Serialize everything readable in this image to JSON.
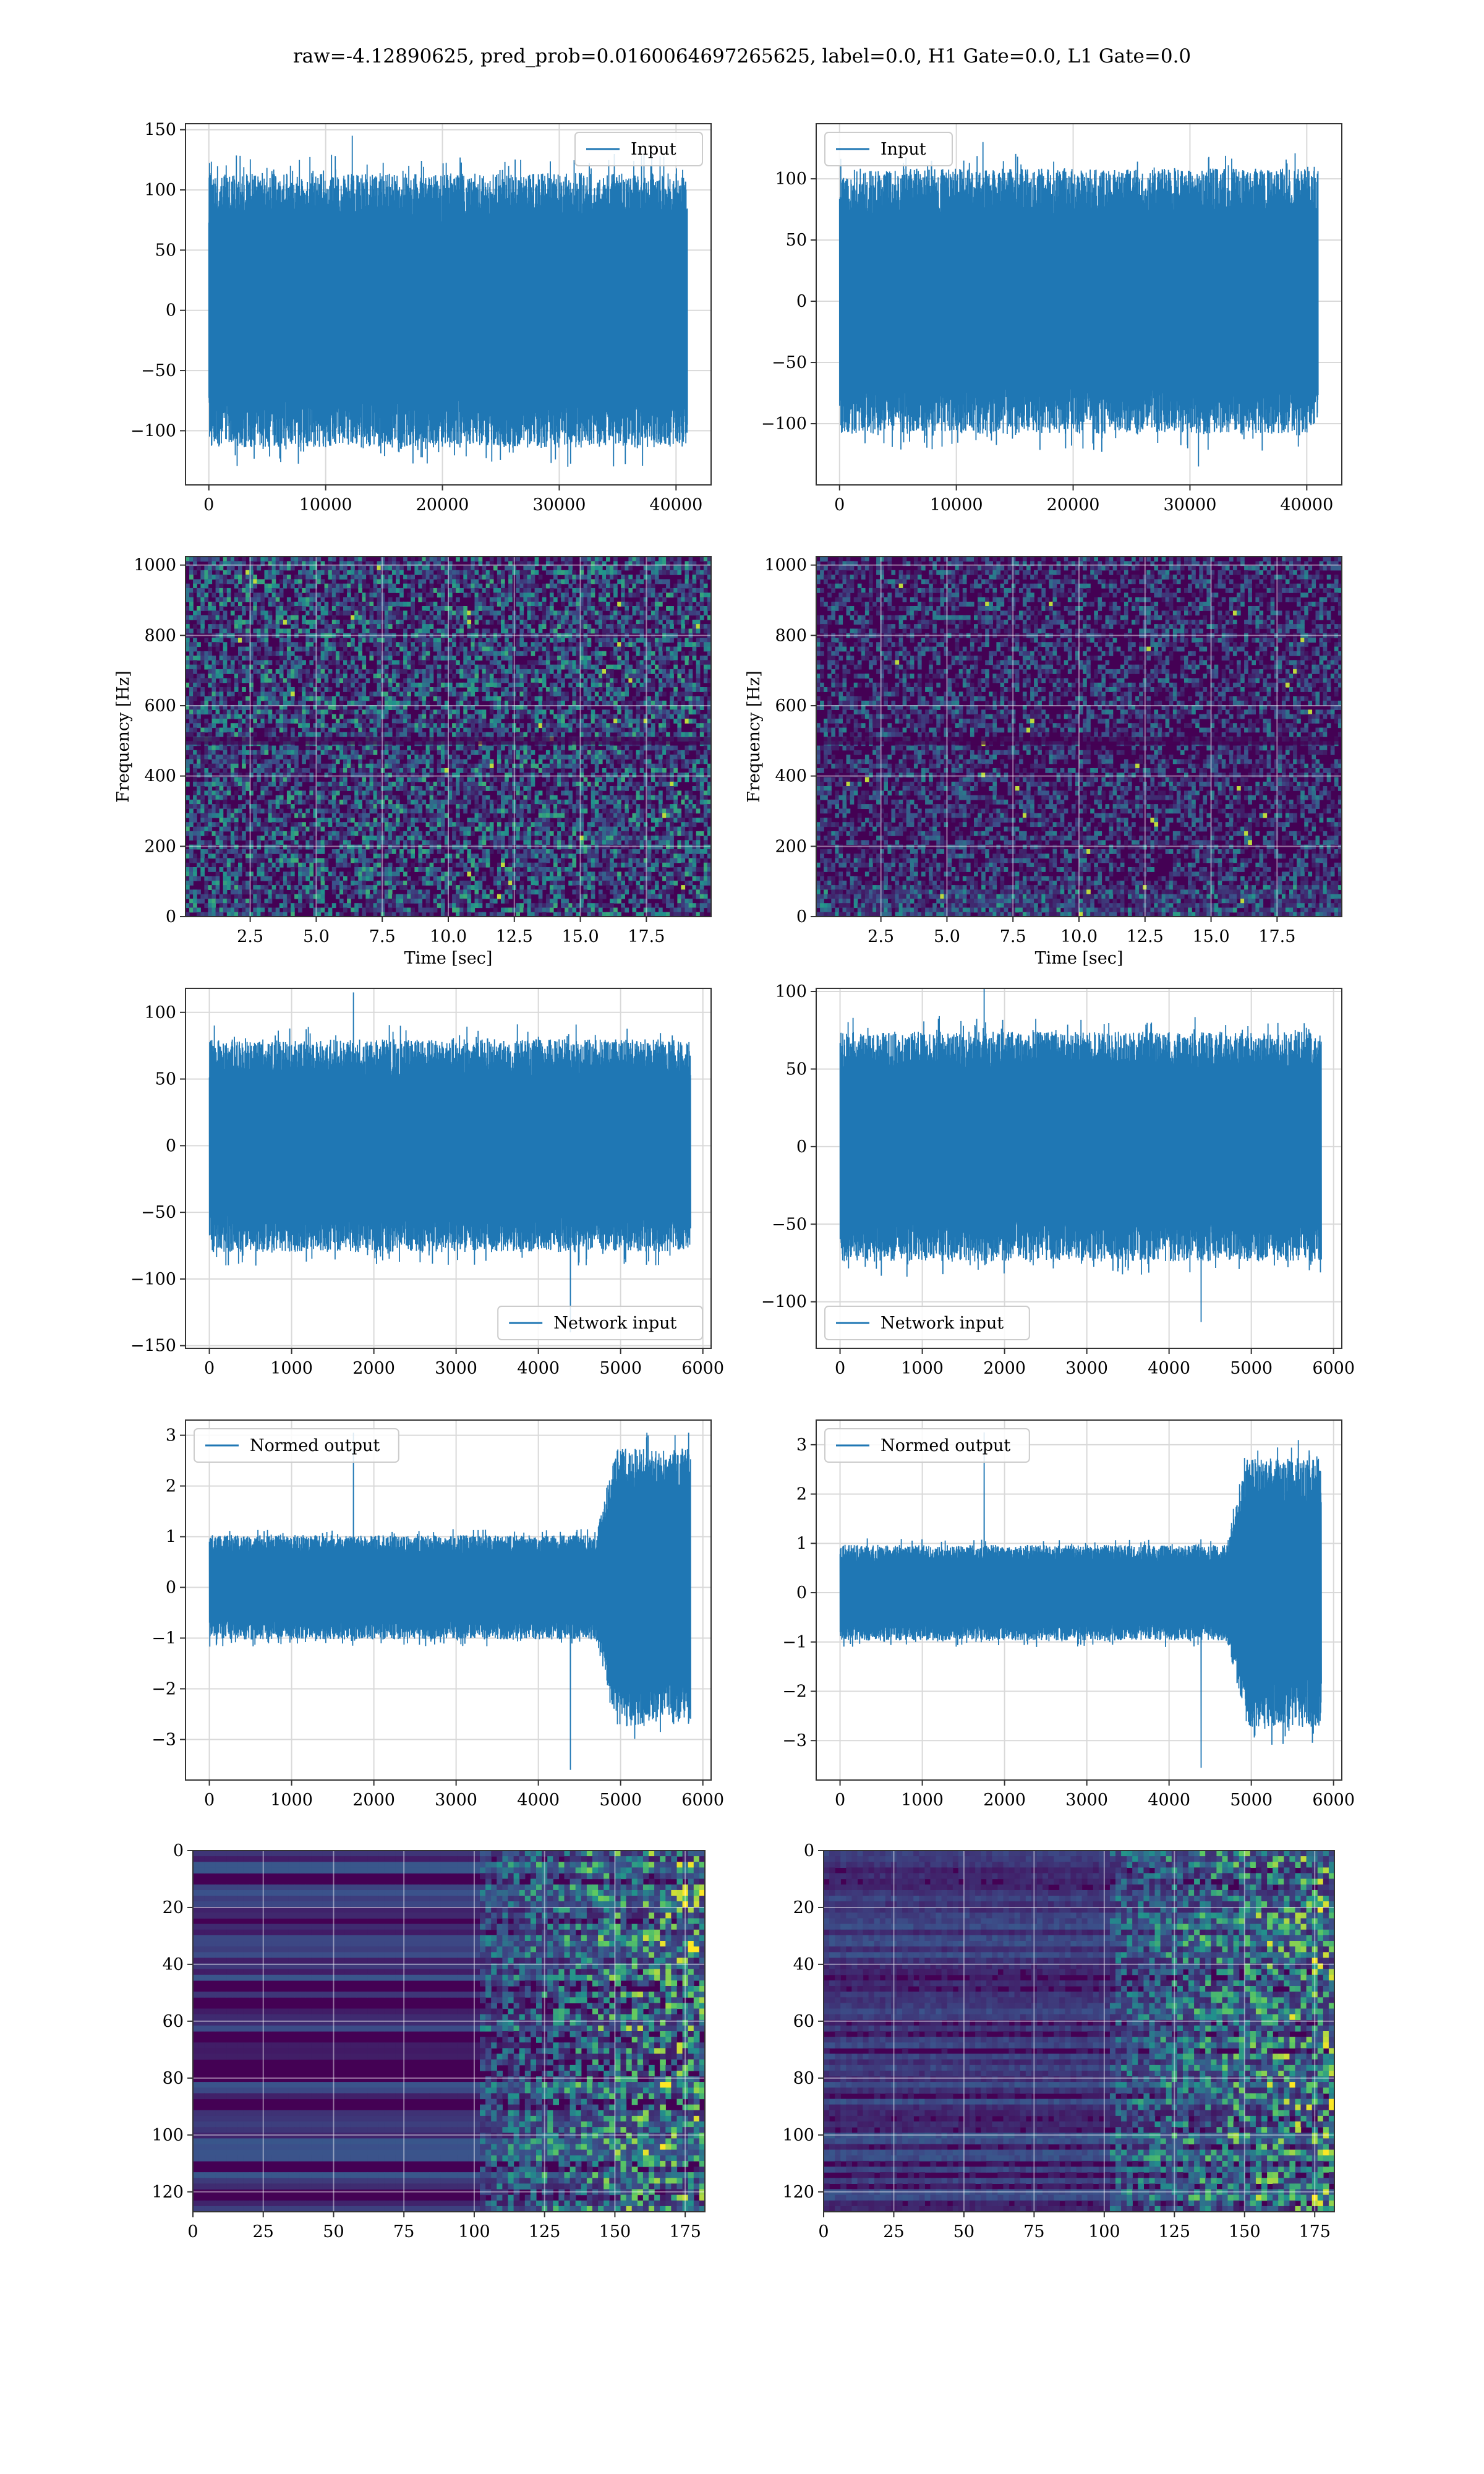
{
  "figure": {
    "title": "raw=-4.12890625, pred_prob=0.0160064697265625, label=0.0, H1 Gate=0.0, L1 Gate=0.0"
  },
  "colors": {
    "line": "#1f77b4",
    "grid": "#d9d9d9",
    "axes": "#333333",
    "viridis_low": "#440154",
    "viridis_mid": "#21918c",
    "viridis_high": "#fde725"
  },
  "chart_data": [
    {
      "id": "h1-input",
      "type": "line",
      "title": "",
      "xlabel": "",
      "ylabel": "",
      "xlim": [
        -2000,
        43000
      ],
      "ylim": [
        -145,
        155
      ],
      "xticks": [
        0,
        10000,
        20000,
        30000,
        40000
      ],
      "xtick_labels": [
        "0",
        "10000",
        "20000",
        "30000",
        "40000"
      ],
      "yticks": [
        -100,
        -50,
        0,
        50,
        100,
        150
      ],
      "ytick_labels": [
        "−100",
        "−50",
        "0",
        "50",
        "100",
        "150"
      ],
      "grid": true,
      "legend": {
        "loc": "upper right",
        "entries": [
          "Input"
        ]
      },
      "series": [
        {
          "name": "Input",
          "x_range": [
            0,
            40960
          ],
          "envelope": [
            -100,
            100
          ],
          "peak_max": 145,
          "peak_min": -130
        }
      ]
    },
    {
      "id": "l1-input",
      "type": "line",
      "title": "",
      "xlabel": "",
      "ylabel": "",
      "xlim": [
        -2000,
        43000
      ],
      "ylim": [
        -150,
        145
      ],
      "xticks": [
        0,
        10000,
        20000,
        30000,
        40000
      ],
      "xtick_labels": [
        "0",
        "10000",
        "20000",
        "30000",
        "40000"
      ],
      "yticks": [
        -100,
        -50,
        0,
        50,
        100
      ],
      "ytick_labels": [
        "−100",
        "−50",
        "0",
        "50",
        "100"
      ],
      "grid": true,
      "legend": {
        "loc": "upper left",
        "entries": [
          "Input"
        ]
      },
      "series": [
        {
          "name": "Input",
          "x_range": [
            0,
            40960
          ],
          "envelope": [
            -95,
            95
          ],
          "peak_max": 130,
          "peak_min": -135
        }
      ]
    },
    {
      "id": "h1-spectrogram",
      "type": "heatmap",
      "title": "",
      "xlabel": "Time [sec]",
      "ylabel": "Frequency [Hz]",
      "xlim": [
        0.05,
        19.95
      ],
      "ylim": [
        0,
        1024
      ],
      "xticks": [
        2.5,
        5.0,
        7.5,
        10.0,
        12.5,
        15.0,
        17.5
      ],
      "xtick_labels": [
        "2.5",
        "5.0",
        "7.5",
        "10.0",
        "12.5",
        "15.0",
        "17.5"
      ],
      "yticks": [
        0,
        200,
        400,
        600,
        800,
        1000
      ],
      "ytick_labels": [
        "0",
        "200",
        "400",
        "600",
        "800",
        "1000"
      ],
      "grid": true,
      "colormap": "viridis"
    },
    {
      "id": "l1-spectrogram",
      "type": "heatmap",
      "title": "",
      "xlabel": "Time [sec]",
      "ylabel": "Frequency [Hz]",
      "xlim": [
        0.05,
        19.95
      ],
      "ylim": [
        0,
        1024
      ],
      "xticks": [
        2.5,
        5.0,
        7.5,
        10.0,
        12.5,
        15.0,
        17.5
      ],
      "xtick_labels": [
        "2.5",
        "5.0",
        "7.5",
        "10.0",
        "12.5",
        "15.0",
        "17.5"
      ],
      "yticks": [
        0,
        200,
        400,
        600,
        800,
        1000
      ],
      "ytick_labels": [
        "0",
        "200",
        "400",
        "600",
        "800",
        "1000"
      ],
      "grid": true,
      "colormap": "viridis"
    },
    {
      "id": "h1-network-input",
      "type": "line",
      "title": "",
      "xlabel": "",
      "ylabel": "",
      "xlim": [
        -290,
        6100
      ],
      "ylim": [
        -152,
        118
      ],
      "xticks": [
        0,
        1000,
        2000,
        3000,
        4000,
        5000,
        6000
      ],
      "xtick_labels": [
        "0",
        "1000",
        "2000",
        "3000",
        "4000",
        "5000",
        "6000"
      ],
      "yticks": [
        -150,
        -100,
        -50,
        0,
        50,
        100
      ],
      "ytick_labels": [
        "−150",
        "−100",
        "−50",
        "0",
        "50",
        "100"
      ],
      "grid": true,
      "legend": {
        "loc": "lower right",
        "entries": [
          "Network input"
        ]
      },
      "series": [
        {
          "name": "Network input",
          "x_range": [
            0,
            5850
          ],
          "envelope": [
            -70,
            70
          ],
          "peak_max": 115,
          "peak_min": -140
        }
      ]
    },
    {
      "id": "l1-network-input",
      "type": "line",
      "title": "",
      "xlabel": "",
      "ylabel": "",
      "xlim": [
        -290,
        6100
      ],
      "ylim": [
        -130,
        102
      ],
      "xticks": [
        0,
        1000,
        2000,
        3000,
        4000,
        5000,
        6000
      ],
      "xtick_labels": [
        "0",
        "1000",
        "2000",
        "3000",
        "4000",
        "5000",
        "6000"
      ],
      "yticks": [
        -100,
        -50,
        0,
        50,
        100
      ],
      "ytick_labels": [
        "−100",
        "−50",
        "0",
        "50",
        "100"
      ],
      "grid": true,
      "legend": {
        "loc": "lower left",
        "entries": [
          "Network input"
        ]
      },
      "series": [
        {
          "name": "Network input",
          "x_range": [
            0,
            5850
          ],
          "envelope": [
            -65,
            65
          ],
          "peak_max": 112,
          "peak_min": -113
        }
      ]
    },
    {
      "id": "h1-normed-output",
      "type": "line",
      "title": "",
      "xlabel": "",
      "ylabel": "",
      "xlim": [
        -290,
        6100
      ],
      "ylim": [
        -3.8,
        3.3
      ],
      "xticks": [
        0,
        1000,
        2000,
        3000,
        4000,
        5000,
        6000
      ],
      "xtick_labels": [
        "0",
        "1000",
        "2000",
        "3000",
        "4000",
        "5000",
        "6000"
      ],
      "yticks": [
        -3,
        -2,
        -1,
        0,
        1,
        2,
        3
      ],
      "ytick_labels": [
        "−3",
        "−2",
        "−1",
        "0",
        "1",
        "2",
        "3"
      ],
      "grid": true,
      "legend": {
        "loc": "upper left",
        "entries": [
          "Normed output"
        ]
      },
      "series": [
        {
          "name": "Normed output",
          "x_range": [
            0,
            5850
          ],
          "envelope": [
            -0.9,
            0.9
          ],
          "tail_start": 4700,
          "tail_envelope": [
            -2.4,
            2.4
          ],
          "peak_max": 3.05,
          "peak_min": -3.6
        }
      ]
    },
    {
      "id": "l1-normed-output",
      "type": "line",
      "title": "",
      "xlabel": "",
      "ylabel": "",
      "xlim": [
        -290,
        6100
      ],
      "ylim": [
        -3.8,
        3.5
      ],
      "xticks": [
        0,
        1000,
        2000,
        3000,
        4000,
        5000,
        6000
      ],
      "xtick_labels": [
        "0",
        "1000",
        "2000",
        "3000",
        "4000",
        "5000",
        "6000"
      ],
      "yticks": [
        -3,
        -2,
        -1,
        0,
        1,
        2,
        3
      ],
      "ytick_labels": [
        "−3",
        "−2",
        "−1",
        "0",
        "1",
        "2",
        "3"
      ],
      "grid": true,
      "legend": {
        "loc": "upper left",
        "entries": [
          "Normed output"
        ]
      },
      "series": [
        {
          "name": "Normed output",
          "x_range": [
            0,
            5850
          ],
          "envelope": [
            -0.85,
            0.85
          ],
          "tail_start": 4700,
          "tail_envelope": [
            -2.4,
            2.4
          ],
          "peak_max": 3.25,
          "peak_min": -3.55
        }
      ]
    },
    {
      "id": "h1-features",
      "type": "heatmap",
      "title": "",
      "xlabel": "",
      "ylabel": "",
      "xlim": [
        0,
        182
      ],
      "ylim": [
        0,
        127
      ],
      "xticks": [
        0,
        25,
        50,
        75,
        100,
        125,
        150,
        175
      ],
      "xtick_labels": [
        "0",
        "25",
        "50",
        "75",
        "100",
        "125",
        "150",
        "175"
      ],
      "yticks": [
        0,
        20,
        40,
        60,
        80,
        100,
        120
      ],
      "ytick_labels": [
        "0",
        "20",
        "40",
        "60",
        "80",
        "100",
        "120"
      ],
      "grid": true,
      "colormap": "viridis",
      "yaxis_inverted": true
    },
    {
      "id": "l1-features",
      "type": "heatmap",
      "title": "",
      "xlabel": "",
      "ylabel": "",
      "xlim": [
        0,
        182
      ],
      "ylim": [
        0,
        127
      ],
      "xticks": [
        0,
        25,
        50,
        75,
        100,
        125,
        150,
        175
      ],
      "xtick_labels": [
        "0",
        "25",
        "50",
        "75",
        "100",
        "125",
        "150",
        "175"
      ],
      "yticks": [
        0,
        20,
        40,
        60,
        80,
        100,
        120
      ],
      "ytick_labels": [
        "0",
        "20",
        "40",
        "60",
        "80",
        "100",
        "120"
      ],
      "grid": true,
      "colormap": "viridis",
      "yaxis_inverted": true
    }
  ]
}
